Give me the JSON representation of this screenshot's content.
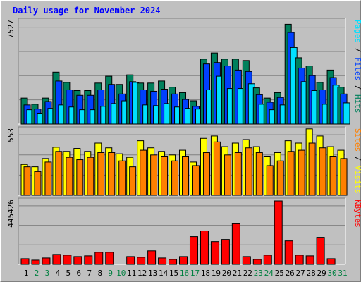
{
  "title": "Daily usage for November 2024",
  "colors": {
    "hits": "#00805c",
    "files": "#0040ff",
    "pages": "#00e0ff",
    "visits": "#ffff00",
    "sites": "#ff8000",
    "kbytes": "#ff0000",
    "weekday_label": "#000000",
    "weekend_label": "#008040"
  },
  "chart_data": [
    {
      "type": "bar",
      "name": "hits-files-pages",
      "ymax_label": "7527",
      "ymax": 7527,
      "legend": [
        {
          "text": "Pages",
          "color": "#00e0ff"
        },
        {
          "text": " / ",
          "color": "#000000"
        },
        {
          "text": "Files",
          "color": "#0040ff"
        },
        {
          "text": " / ",
          "color": "#000000"
        },
        {
          "text": "Hits",
          "color": "#00805c"
        }
      ],
      "categories": [
        "1",
        "2",
        "3",
        "4",
        "5",
        "6",
        "7",
        "8",
        "9",
        "10",
        "11",
        "12",
        "13",
        "14",
        "15",
        "16",
        "17",
        "18",
        "19",
        "20",
        "21",
        "22",
        "23",
        "24",
        "25",
        "26",
        "27",
        "28",
        "29",
        "30",
        "31"
      ],
      "series": [
        {
          "name": "Hits",
          "values": [
            1900,
            1450,
            1900,
            3800,
            3050,
            2450,
            2450,
            3000,
            3500,
            2900,
            3600,
            3000,
            3000,
            3150,
            2700,
            2300,
            1700,
            4750,
            5200,
            4750,
            4750,
            4650,
            2650,
            1900,
            2300,
            7300,
            4850,
            4250,
            3050,
            3950,
            2700
          ]
        },
        {
          "name": "Files",
          "values": [
            1400,
            1100,
            1650,
            3150,
            2500,
            2100,
            2100,
            2500,
            2900,
            2200,
            3100,
            2500,
            2400,
            2550,
            2200,
            1800,
            1300,
            4400,
            4500,
            4250,
            3950,
            3850,
            2150,
            1600,
            1950,
            6700,
            4100,
            3550,
            2500,
            3400,
            2200
          ]
        },
        {
          "name": "Pages",
          "values": [
            1050,
            800,
            1150,
            1400,
            1250,
            1050,
            1050,
            1300,
            1500,
            1700,
            3050,
            1400,
            1350,
            1500,
            1250,
            1150,
            1100,
            2500,
            3500,
            2600,
            2600,
            2950,
            1450,
            1050,
            1400,
            5600,
            3100,
            2450,
            1450,
            2850,
            1550
          ]
        }
      ]
    },
    {
      "type": "bar",
      "name": "visits-sites",
      "ymax_label": "553",
      "ymax": 553,
      "legend": [
        {
          "text": "Sites",
          "color": "#ff8000"
        },
        {
          "text": " / ",
          "color": "#000000"
        },
        {
          "text": "Visits",
          "color": "#ffff00"
        }
      ],
      "categories": [
        "1",
        "2",
        "3",
        "4",
        "5",
        "6",
        "7",
        "8",
        "9",
        "10",
        "11",
        "12",
        "13",
        "14",
        "15",
        "16",
        "17",
        "18",
        "19",
        "20",
        "21",
        "22",
        "23",
        "24",
        "25",
        "26",
        "27",
        "28",
        "29",
        "30",
        "31"
      ],
      "series": [
        {
          "name": "Visits",
          "values": [
            260,
            240,
            310,
            405,
            370,
            395,
            370,
            440,
            400,
            350,
            320,
            460,
            400,
            370,
            340,
            380,
            280,
            480,
            500,
            410,
            440,
            470,
            410,
            330,
            360,
            460,
            440,
            560,
            500,
            410,
            380
          ]
        },
        {
          "name": "Sites",
          "values": [
            240,
            200,
            280,
            370,
            320,
            300,
            320,
            360,
            360,
            290,
            240,
            380,
            340,
            330,
            290,
            330,
            250,
            360,
            450,
            340,
            360,
            400,
            360,
            250,
            290,
            370,
            380,
            440,
            400,
            330,
            310
          ]
        }
      ]
    },
    {
      "type": "bar",
      "name": "kbytes",
      "ymax_label": "445426",
      "ymax": 445426,
      "legend": [
        {
          "text": "KBytes",
          "color": "#ff0000"
        }
      ],
      "categories": [
        "1",
        "2",
        "3",
        "4",
        "5",
        "6",
        "7",
        "8",
        "9",
        "10",
        "11",
        "12",
        "13",
        "14",
        "15",
        "16",
        "17",
        "18",
        "19",
        "20",
        "21",
        "22",
        "23",
        "24",
        "25",
        "26",
        "27",
        "28",
        "29",
        "30",
        "31"
      ],
      "series": [
        {
          "name": "KBytes",
          "values": [
            40000,
            30000,
            45000,
            70000,
            65000,
            55000,
            60000,
            85000,
            85000,
            0,
            55000,
            50000,
            95000,
            45000,
            35000,
            55000,
            195000,
            235000,
            160000,
            175000,
            285000,
            55000,
            35000,
            65000,
            445426,
            165000,
            65000,
            60000,
            190000,
            40000,
            0
          ]
        }
      ]
    }
  ]
}
